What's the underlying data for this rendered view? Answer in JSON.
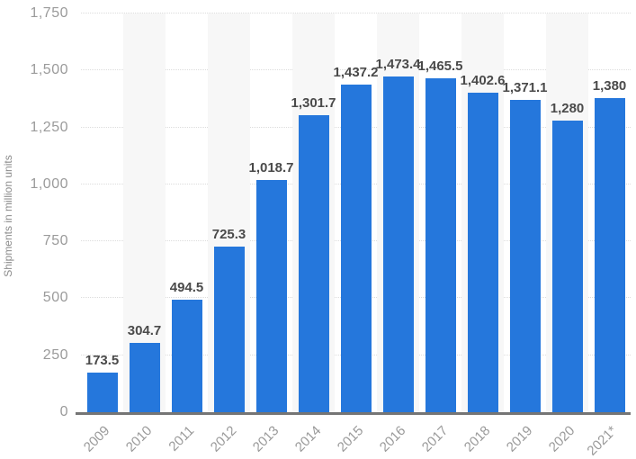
{
  "chart_data": {
    "type": "bar",
    "title": "",
    "xlabel": "",
    "ylabel": "Shipments in million units",
    "categories": [
      "2009",
      "2010",
      "2011",
      "2012",
      "2013",
      "2014",
      "2015",
      "2016",
      "2017",
      "2018",
      "2019",
      "2020",
      "2021*"
    ],
    "values": [
      173.5,
      304.7,
      494.5,
      725.3,
      1018.7,
      1301.7,
      1437.2,
      1473.4,
      1465.5,
      1402.6,
      1371.1,
      1280,
      1380
    ],
    "value_labels": [
      "173.5",
      "304.7",
      "494.5",
      "725.3",
      "1,018.7",
      "1,301.7",
      "1,437.2",
      "1,473.4",
      "1,465.5",
      "1,402.6",
      "1,371.1",
      "1,280",
      "1,380"
    ],
    "ylim": [
      0,
      1750
    ],
    "yticks": [
      0,
      250,
      500,
      750,
      1000,
      1250,
      1500,
      1750
    ],
    "ytick_labels": [
      "0",
      "250",
      "500",
      "750",
      "1,000",
      "1,250",
      "1,500",
      "1,750"
    ],
    "grid": "horizontal-dotted",
    "legend": "none",
    "striped_categories": [
      "2010",
      "2012",
      "2014",
      "2016",
      "2018",
      "2020"
    ],
    "colors": {
      "bar": "#2577dc",
      "stripe": "#f7f7f7",
      "gridline": "#dcdcdc",
      "axis_line": "#757575",
      "tick_label": "#9a9a9a",
      "value_label": "#4a4a4a"
    }
  }
}
